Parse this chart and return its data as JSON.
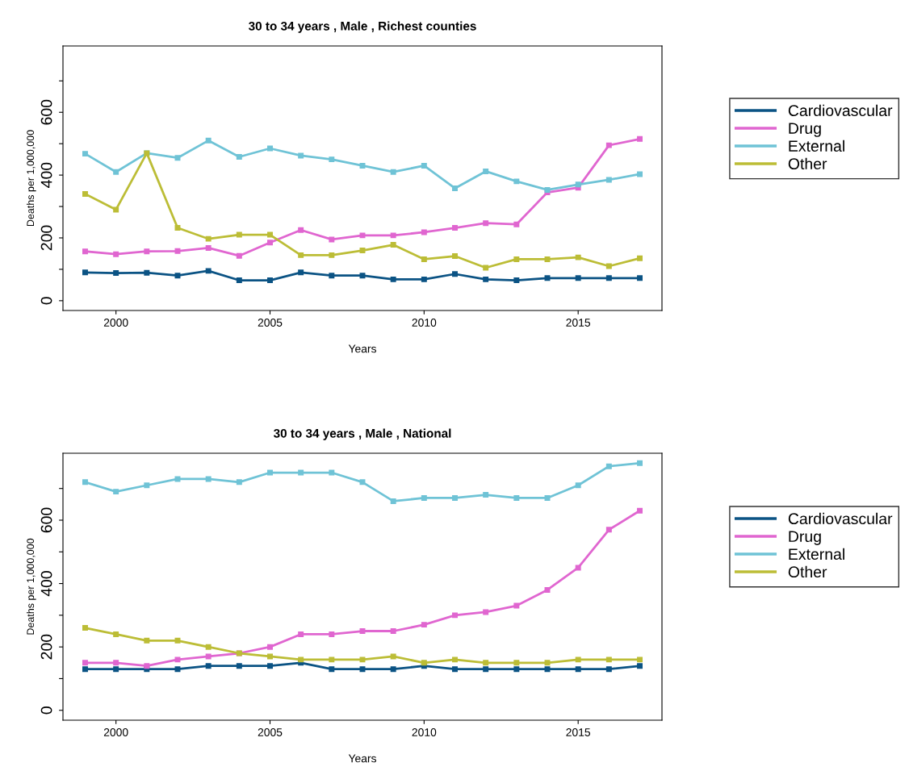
{
  "chart_data": [
    {
      "type": "line",
      "title": "30 to 34 years , Male , Richest counties",
      "xlabel": "Years",
      "ylabel": "Deaths per 1,000,000",
      "x": [
        1999,
        2000,
        2001,
        2002,
        2003,
        2004,
        2005,
        2006,
        2007,
        2008,
        2009,
        2010,
        2011,
        2012,
        2013,
        2014,
        2015,
        2016,
        2017
      ],
      "xlim": [
        1998.28,
        2017.72
      ],
      "xticks": [
        2000,
        2005,
        2010,
        2015
      ],
      "ylim": [
        -31.2,
        811.2
      ],
      "yticks": [
        0,
        {
          "value": 100,
          "label": null
        },
        200,
        {
          "value": 300,
          "label": null
        },
        400,
        {
          "value": 500,
          "label": null
        },
        600,
        {
          "value": 700,
          "label": null
        }
      ],
      "marker": "square",
      "legend": "right",
      "grid": false,
      "series": [
        {
          "name": "Cardiovascular",
          "color": "#0b5384",
          "values": [
            90,
            88,
            89,
            80,
            95,
            65,
            65,
            90,
            80,
            80,
            68,
            68,
            85,
            68,
            65,
            72,
            72,
            72,
            72
          ]
        },
        {
          "name": "Drug",
          "color": "#e066d0",
          "values": [
            157,
            148,
            157,
            158,
            168,
            143,
            185,
            225,
            195,
            208,
            208,
            218,
            232,
            247,
            243,
            345,
            360,
            495,
            515
          ]
        },
        {
          "name": "External",
          "color": "#6fc3d6",
          "values": [
            468,
            410,
            470,
            455,
            510,
            458,
            485,
            462,
            450,
            430,
            410,
            430,
            358,
            412,
            380,
            353,
            370,
            385,
            403
          ]
        },
        {
          "name": "Other",
          "color": "#bcbd36",
          "values": [
            340,
            290,
            470,
            232,
            197,
            210,
            210,
            145,
            145,
            160,
            178,
            132,
            142,
            105,
            132,
            132,
            138,
            110,
            135
          ]
        }
      ]
    },
    {
      "type": "line",
      "title": "30 to 34 years , Male , National",
      "xlabel": "Years",
      "ylabel": "Deaths per 1,000,000",
      "x": [
        1999,
        2000,
        2001,
        2002,
        2003,
        2004,
        2005,
        2006,
        2007,
        2008,
        2009,
        2010,
        2011,
        2012,
        2013,
        2014,
        2015,
        2016,
        2017
      ],
      "xlim": [
        1998.28,
        2017.72
      ],
      "xticks": [
        2000,
        2005,
        2010,
        2015
      ],
      "ylim": [
        -31.2,
        811.2
      ],
      "yticks": [
        0,
        {
          "value": 100,
          "label": null
        },
        200,
        {
          "value": 300,
          "label": null
        },
        400,
        {
          "value": 500,
          "label": null
        },
        600,
        {
          "value": 700,
          "label": null
        }
      ],
      "marker": "square",
      "legend": "right",
      "grid": false,
      "series": [
        {
          "name": "Cardiovascular",
          "color": "#0b5384",
          "values": [
            130,
            130,
            130,
            130,
            140,
            140,
            140,
            150,
            130,
            130,
            130,
            140,
            130,
            130,
            130,
            130,
            130,
            130,
            140
          ]
        },
        {
          "name": "Drug",
          "color": "#e066d0",
          "values": [
            150,
            150,
            140,
            160,
            170,
            180,
            200,
            240,
            240,
            250,
            250,
            270,
            300,
            310,
            330,
            380,
            450,
            570,
            630
          ]
        },
        {
          "name": "External",
          "color": "#6fc3d6",
          "values": [
            720,
            690,
            710,
            730,
            730,
            720,
            750,
            750,
            750,
            720,
            660,
            670,
            670,
            680,
            670,
            670,
            710,
            770,
            780
          ]
        },
        {
          "name": "Other",
          "color": "#bcbd36",
          "values": [
            260,
            240,
            220,
            220,
            200,
            180,
            170,
            160,
            160,
            160,
            170,
            150,
            160,
            150,
            150,
            150,
            160,
            160,
            160
          ]
        }
      ]
    }
  ]
}
